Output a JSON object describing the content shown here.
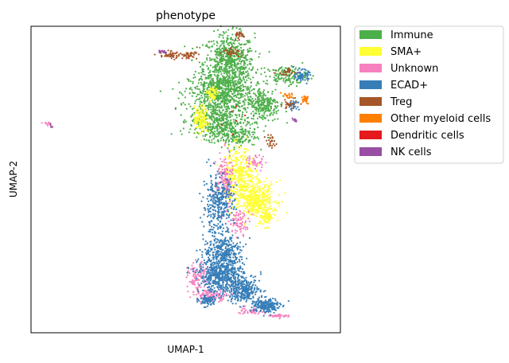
{
  "chart_data": {
    "type": "scatter",
    "title": "phenotype",
    "xlabel": "UMAP-1",
    "ylabel": "UMAP-2",
    "xlim": [
      -6.5,
      13.5
    ],
    "ylim": [
      -4.5,
      13.5
    ],
    "grid": false,
    "ticks": false,
    "legend_position": "outside-right",
    "legend": [
      {
        "name": "Immune",
        "color": "#4daf4a"
      },
      {
        "name": "SMA+",
        "color": "#ffff33"
      },
      {
        "name": "Unknown",
        "color": "#f781bf"
      },
      {
        "name": "ECAD+",
        "color": "#377eb8"
      },
      {
        "name": "Treg",
        "color": "#a65628"
      },
      {
        "name": "Other myeloid cells",
        "color": "#ff7f00"
      },
      {
        "name": "Dendritic cells",
        "color": "#e41a1c"
      },
      {
        "name": "NK cells",
        "color": "#984ea3"
      }
    ],
    "series": [
      {
        "name": "Immune",
        "color": "#4daf4a",
        "regions": [
          [
            6.3,
            11.3,
            1.5,
            1.6,
            700
          ],
          [
            5.8,
            9.6,
            1.9,
            1.0,
            600
          ],
          [
            5.5,
            8.0,
            1.6,
            1.0,
            400
          ],
          [
            8.5,
            8.9,
            1.0,
            0.9,
            250
          ],
          [
            10.0,
            10.6,
            1.2,
            0.5,
            150
          ],
          [
            6.5,
            7.1,
            1.5,
            0.6,
            200
          ]
        ]
      },
      {
        "name": "SMA+",
        "color": "#ffff33",
        "regions": [
          [
            4.5,
            8.0,
            0.4,
            0.7,
            150
          ],
          [
            7.0,
            4.6,
            0.9,
            1.6,
            400
          ],
          [
            8.3,
            3.4,
            1.0,
            0.9,
            250
          ],
          [
            8.7,
            2.3,
            0.5,
            0.5,
            80
          ],
          [
            5.2,
            9.5,
            0.3,
            0.4,
            60
          ],
          [
            7.8,
            3.0,
            0.6,
            0.6,
            100
          ]
        ]
      },
      {
        "name": "Unknown",
        "color": "#f781bf",
        "regions": [
          [
            6.0,
            4.5,
            0.5,
            1.4,
            150
          ],
          [
            4.3,
            -1.3,
            0.6,
            0.8,
            120
          ],
          [
            5.2,
            -2.3,
            1.0,
            0.3,
            120
          ],
          [
            7.0,
            2.0,
            0.6,
            0.6,
            80
          ],
          [
            7.7,
            -3.2,
            0.8,
            0.2,
            40
          ],
          [
            9.5,
            -3.5,
            0.6,
            0.1,
            40
          ],
          [
            8.0,
            5.5,
            0.6,
            0.4,
            40
          ],
          [
            -5.4,
            7.8,
            0.3,
            0.15,
            12
          ]
        ]
      },
      {
        "name": "ECAD+",
        "color": "#377eb8",
        "regions": [
          [
            5.6,
            3.0,
            0.9,
            1.6,
            350
          ],
          [
            6.0,
            0.3,
            1.2,
            0.8,
            300
          ],
          [
            5.8,
            -1.1,
            1.3,
            0.9,
            550
          ],
          [
            7.2,
            -2.0,
            1.0,
            0.6,
            300
          ],
          [
            8.7,
            -2.9,
            0.8,
            0.4,
            200
          ],
          [
            11.0,
            10.6,
            0.4,
            0.3,
            70
          ],
          [
            10.5,
            8.9,
            0.3,
            0.3,
            30
          ],
          [
            4.9,
            -2.6,
            0.5,
            0.3,
            80
          ]
        ]
      },
      {
        "name": "Treg",
        "color": "#a65628",
        "regions": [
          [
            2.5,
            11.8,
            0.6,
            0.2,
            50
          ],
          [
            3.7,
            11.8,
            0.5,
            0.2,
            40
          ],
          [
            6.5,
            12.0,
            0.5,
            0.2,
            40
          ],
          [
            7.0,
            13.0,
            0.4,
            0.2,
            30
          ],
          [
            10.0,
            10.8,
            0.5,
            0.2,
            30
          ],
          [
            10.2,
            8.9,
            0.5,
            0.2,
            25
          ],
          [
            9.0,
            6.7,
            0.3,
            0.4,
            25
          ]
        ]
      },
      {
        "name": "Other myeloid cells",
        "color": "#ff7f00",
        "regions": [
          [
            11.2,
            9.2,
            0.25,
            0.2,
            30
          ],
          [
            10.1,
            9.4,
            0.4,
            0.15,
            20
          ]
        ]
      },
      {
        "name": "Dendritic cells",
        "color": "#e41a1c",
        "regions": [
          [
            6.5,
            8.0,
            0.8,
            0.8,
            6
          ]
        ]
      },
      {
        "name": "NK cells",
        "color": "#984ea3",
        "regions": [
          [
            2.0,
            12.0,
            0.2,
            0.1,
            12
          ],
          [
            10.6,
            8.0,
            0.15,
            0.15,
            8
          ],
          [
            -5.2,
            7.7,
            0.15,
            0.15,
            4
          ]
        ]
      }
    ]
  }
}
